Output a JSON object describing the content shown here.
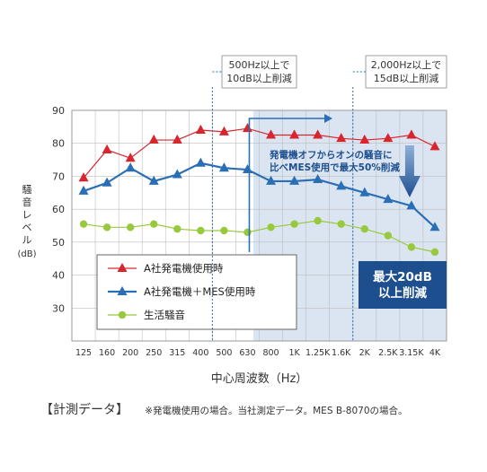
{
  "chart_data": {
    "type": "line",
    "x": [
      "125",
      "160",
      "200",
      "250",
      "315",
      "400",
      "500",
      "630",
      "800",
      "1K",
      "1.25K",
      "1.6K",
      "2K",
      "2.5K",
      "3.15K",
      "4K"
    ],
    "xlabel": "中心周波数（Hz）",
    "ylabel": "騒音レベル(dB)",
    "ylim": [
      20,
      90
    ],
    "yticks": [
      30,
      40,
      50,
      60,
      70,
      80,
      90
    ],
    "grid": true,
    "legend_position": "lower-left",
    "series": [
      {
        "name": "A社発電機使用時",
        "color": "#d7262e",
        "marker": "triangle",
        "values": [
          69.5,
          78,
          75.5,
          81,
          81,
          84,
          83.5,
          84.5,
          82.5,
          82.5,
          82.5,
          81.5,
          81,
          81.5,
          82.5,
          79
        ]
      },
      {
        "name": "A社発電機＋MES使用時",
        "color": "#2a6fb6",
        "marker": "triangle",
        "values": [
          65.5,
          68,
          72.5,
          68.5,
          70.5,
          74,
          72.5,
          72,
          68.5,
          68.5,
          69,
          67,
          65,
          63,
          61,
          54.5
        ]
      },
      {
        "name": "生活騒音",
        "color": "#98c93c",
        "marker": "circle",
        "values": [
          55.5,
          54.5,
          54.5,
          55.5,
          54,
          53.5,
          53.5,
          53,
          54.5,
          55.5,
          56.5,
          55.5,
          54,
          52,
          48.5,
          47
        ]
      }
    ],
    "annotations": {
      "callout1": "500Hz以上で\n10dB以上削減",
      "callout2": "2,000Hz以上で\n15dB以上削減",
      "region_note": "発電機オフからオンの騒音に\n比べMES使用で最大50%削減",
      "max_box": "最大20dB\n以上削減"
    }
  },
  "footer": {
    "bracket": "【計測データ】",
    "note": "※発電機使用の場合。当社測定データ。MES B-8070の場合。"
  },
  "colors": {
    "red": "#d7262e",
    "blue": "#2a6fb6",
    "green": "#98c93c",
    "highlight": "#dbe5f2",
    "dark_blue_box": "#1d4f8f"
  }
}
